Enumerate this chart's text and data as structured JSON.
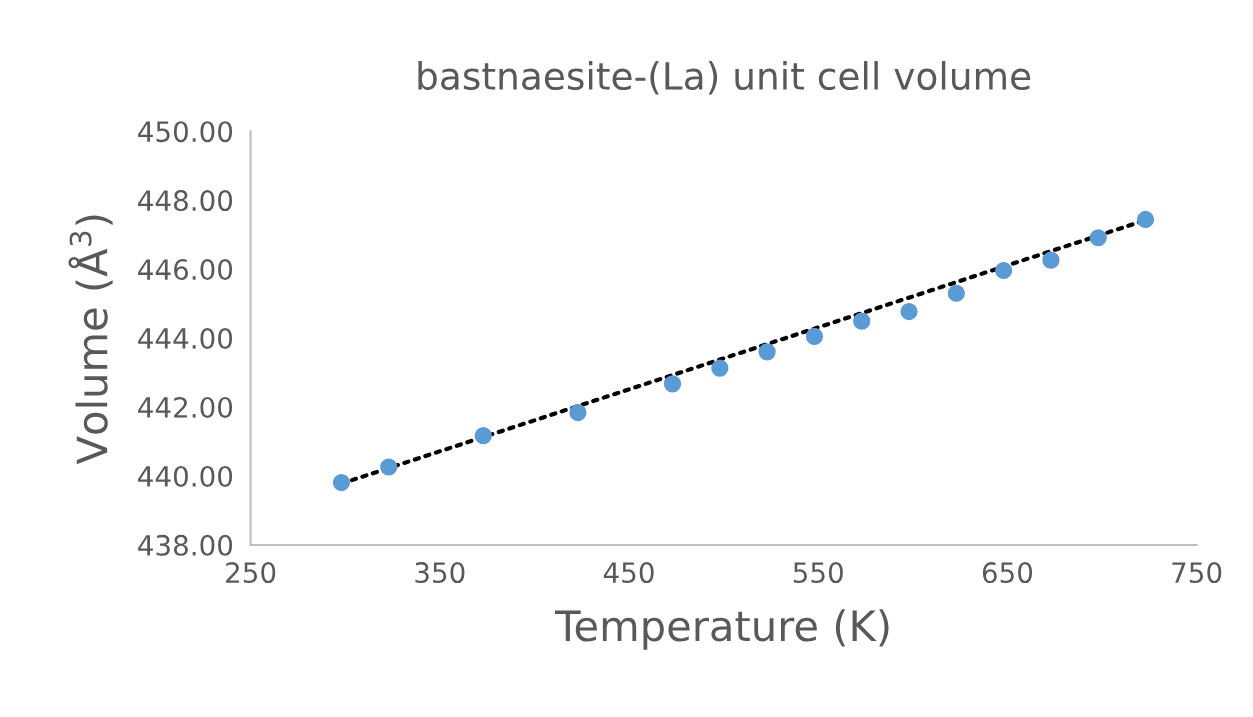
{
  "chart_data": {
    "type": "scatter",
    "title": "bastnaesite-(La) unit cell volume",
    "xlabel": "Temperature (K)",
    "ylabel": "Volume (Å$^{3}$)",
    "xlim": [
      250,
      750
    ],
    "xticks": [
      250,
      350,
      450,
      550,
      650,
      750
    ],
    "ylim": [
      438,
      450
    ],
    "yticks": [
      {
        "value": 438,
        "label": "438.00"
      },
      {
        "value": 440,
        "label": "440.00"
      },
      {
        "value": 442,
        "label": "442.00"
      },
      {
        "value": 444,
        "label": "444.00"
      },
      {
        "value": 446,
        "label": "446.00"
      },
      {
        "value": 448,
        "label": "448.00"
      },
      {
        "value": 450,
        "label": "450.00"
      }
    ],
    "grid": false,
    "legend": false,
    "series": [
      {
        "type": "line",
        "color": "#000000",
        "line_style": "dotted",
        "x": [
          298,
          723
        ],
        "values": [
          439.78,
          447.42
        ]
      },
      {
        "color": "#5b9bd5",
        "marker": "circle",
        "x": [
          298,
          323,
          373,
          423,
          473,
          498,
          523,
          548,
          573,
          598,
          623,
          648,
          673,
          698,
          723
        ],
        "values": [
          439.81,
          440.26,
          441.17,
          441.84,
          442.67,
          443.13,
          443.6,
          444.05,
          444.49,
          444.77,
          445.3,
          445.96,
          446.26,
          446.91,
          447.44
        ]
      }
    ]
  }
}
